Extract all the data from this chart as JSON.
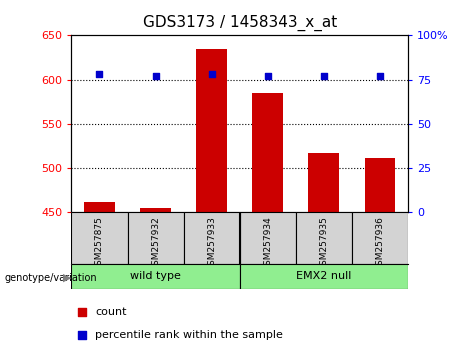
{
  "title": "GDS3173 / 1458343_x_at",
  "samples": [
    "GSM257875",
    "GSM257932",
    "GSM257933",
    "GSM257934",
    "GSM257935",
    "GSM257936"
  ],
  "bar_values": [
    462,
    455,
    635,
    585,
    517,
    511
  ],
  "bar_baseline": 450,
  "percentile_values": [
    78,
    77,
    78,
    77,
    77,
    77
  ],
  "left_ylim": [
    450,
    650
  ],
  "right_ylim": [
    0,
    100
  ],
  "left_yticks": [
    450,
    500,
    550,
    600,
    650
  ],
  "right_yticks": [
    0,
    25,
    50,
    75,
    100
  ],
  "right_yticklabels": [
    "0",
    "25",
    "50",
    "75",
    "100%"
  ],
  "bar_color": "#cc0000",
  "dot_color": "#0000cc",
  "grid_color": "black",
  "group1_label": "wild type",
  "group2_label": "EMX2 null",
  "group_bg_color": "#90ee90",
  "sample_bg_color": "#d3d3d3",
  "genotype_label": "genotype/variation",
  "legend_count_label": "count",
  "legend_percentile_label": "percentile rank within the sample",
  "title_fontsize": 11,
  "tick_fontsize": 8,
  "bar_width": 0.55,
  "fig_width": 4.61,
  "fig_height": 3.54,
  "fig_dpi": 100
}
